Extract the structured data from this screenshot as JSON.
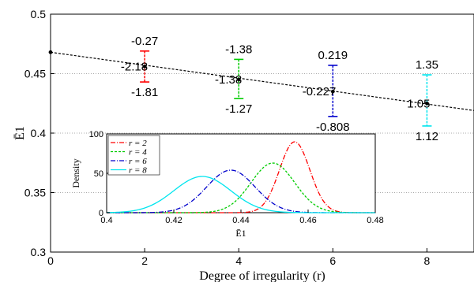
{
  "chart_data": [
    {
      "type": "scatter",
      "title": "",
      "xlabel": "Degree of irregularity (r)",
      "ylabel": "Ē1",
      "xlim": [
        0,
        9
      ],
      "ylim": [
        0.3,
        0.5
      ],
      "xticks": [
        "0",
        "2",
        "4",
        "6",
        "8"
      ],
      "yticks": [
        "0.3",
        "0.35",
        "0.4",
        "0.45",
        "0.5"
      ],
      "grid": "horizontal-dotted",
      "trend_line": {
        "x": [
          0,
          9
        ],
        "y": [
          0.468,
          0.419
        ]
      },
      "points": [
        {
          "x": 0,
          "y": 0.468
        },
        {
          "x": 2,
          "y": 0.456,
          "low": 0.443,
          "high": 0.469,
          "color": "#ff0000",
          "label_top": "-0.27",
          "label_mid": "-2.18",
          "label_bottom": "-1.81"
        },
        {
          "x": 4,
          "y": 0.445,
          "low": 0.429,
          "high": 0.462,
          "color": "#00cc00",
          "label_top": "-1.38",
          "label_mid": "-1.38",
          "label_bottom": "-1.27"
        },
        {
          "x": 6,
          "y": 0.435,
          "low": 0.414,
          "high": 0.457,
          "color": "#0000cc",
          "label_top": "0.219",
          "label_mid": "-0.227",
          "label_bottom": "-0.808"
        },
        {
          "x": 8,
          "y": 0.425,
          "low": 0.406,
          "high": 0.449,
          "color": "#00e5ee",
          "label_top": "1.35",
          "label_mid": "1.05",
          "label_bottom": "1.12"
        }
      ]
    },
    {
      "type": "line",
      "title": "",
      "xlabel": "Ē1",
      "ylabel": "Density",
      "xlim": [
        0.4,
        0.48
      ],
      "ylim": [
        0,
        100
      ],
      "xticks": [
        "0.4",
        "0.42",
        "0.44",
        "0.46",
        "0.48"
      ],
      "yticks": [
        "0",
        "50",
        "100"
      ],
      "legend": "top-left",
      "series": [
        {
          "name": "r = 2",
          "color": "#ff0000",
          "dash": "6,2,1,2",
          "mean": 0.456,
          "sd": 0.0045,
          "peak": 90
        },
        {
          "name": "r = 4",
          "color": "#00cc00",
          "dash": "3,2",
          "mean": 0.4495,
          "sd": 0.0065,
          "peak": 63
        },
        {
          "name": "r = 6",
          "color": "#0000cc",
          "dash": "6,2,1,2",
          "mean": 0.437,
          "sd": 0.0072,
          "peak": 54
        },
        {
          "name": "r = 8",
          "color": "#00e5ee",
          "dash": "",
          "mean": 0.4285,
          "sd": 0.0085,
          "peak": 46
        }
      ]
    }
  ]
}
